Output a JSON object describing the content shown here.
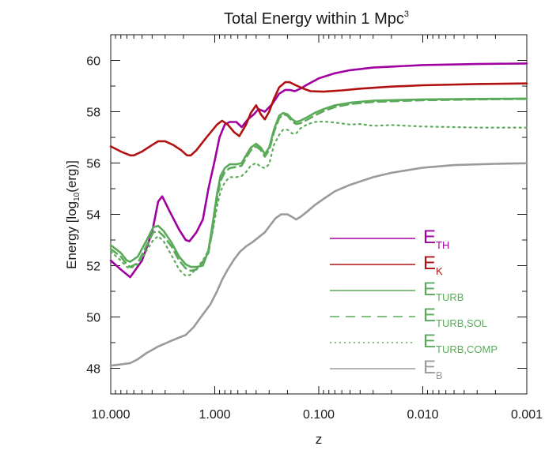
{
  "chart_data": {
    "type": "line",
    "title": "Total Energy within 1 Mpc",
    "title_superscript": "3",
    "xlabel": "z",
    "ylabel": {
      "main": "Energy [log",
      "sub": "10",
      "end": "(erg)]"
    },
    "x_scale": "log-reversed",
    "xlim": [
      10.0,
      0.001
    ],
    "ylim": [
      47,
      61
    ],
    "x_ticks": [
      {
        "value": 10.0,
        "label": "10.000"
      },
      {
        "value": 1.0,
        "label": "1.000"
      },
      {
        "value": 0.1,
        "label": "0.100"
      },
      {
        "value": 0.01,
        "label": "0.010"
      },
      {
        "value": 0.001,
        "label": "0.001"
      }
    ],
    "y_ticks": [
      {
        "value": 48,
        "label": "48"
      },
      {
        "value": 50,
        "label": "50"
      },
      {
        "value": 52,
        "label": "52"
      },
      {
        "value": 54,
        "label": "54"
      },
      {
        "value": 56,
        "label": "56"
      },
      {
        "value": 58,
        "label": "58"
      },
      {
        "value": 60,
        "label": "60"
      }
    ],
    "legend_position": "bottom-right",
    "series": [
      {
        "key": "eth",
        "name": "E",
        "sub": "TH",
        "color": "#a000a0",
        "style": "solid",
        "points": [
          [
            10,
            52.2
          ],
          [
            8,
            51.85
          ],
          [
            6.5,
            51.55
          ],
          [
            5,
            52.2
          ],
          [
            4,
            53.3
          ],
          [
            3.5,
            54.5
          ],
          [
            3.2,
            54.7
          ],
          [
            2.7,
            54.1
          ],
          [
            2.2,
            53.4
          ],
          [
            1.9,
            53.0
          ],
          [
            1.75,
            52.95
          ],
          [
            1.5,
            53.3
          ],
          [
            1.3,
            53.8
          ],
          [
            1.15,
            55.0
          ],
          [
            1.0,
            56.1
          ],
          [
            0.9,
            57.0
          ],
          [
            0.8,
            57.5
          ],
          [
            0.72,
            57.6
          ],
          [
            0.62,
            57.6
          ],
          [
            0.55,
            57.4
          ],
          [
            0.48,
            57.7
          ],
          [
            0.42,
            57.9
          ],
          [
            0.38,
            58.1
          ],
          [
            0.33,
            58.0
          ],
          [
            0.28,
            58.3
          ],
          [
            0.24,
            58.7
          ],
          [
            0.21,
            58.85
          ],
          [
            0.19,
            58.85
          ],
          [
            0.17,
            58.8
          ],
          [
            0.15,
            58.9
          ],
          [
            0.13,
            59.05
          ],
          [
            0.1,
            59.3
          ],
          [
            0.07,
            59.5
          ],
          [
            0.05,
            59.62
          ],
          [
            0.03,
            59.72
          ],
          [
            0.01,
            59.82
          ],
          [
            0.003,
            59.86
          ],
          [
            0.001,
            59.88
          ]
        ]
      },
      {
        "key": "ek",
        "name": "E",
        "sub": "K",
        "color": "#b01010",
        "style": "solid",
        "points": [
          [
            10,
            56.65
          ],
          [
            8,
            56.45
          ],
          [
            6.5,
            56.3
          ],
          [
            6,
            56.3
          ],
          [
            5,
            56.45
          ],
          [
            4,
            56.7
          ],
          [
            3.5,
            56.85
          ],
          [
            3,
            56.85
          ],
          [
            2.5,
            56.7
          ],
          [
            2.1,
            56.5
          ],
          [
            1.85,
            56.3
          ],
          [
            1.7,
            56.3
          ],
          [
            1.5,
            56.5
          ],
          [
            1.2,
            57.0
          ],
          [
            0.95,
            57.5
          ],
          [
            0.85,
            57.65
          ],
          [
            0.75,
            57.5
          ],
          [
            0.65,
            57.2
          ],
          [
            0.58,
            57.05
          ],
          [
            0.5,
            57.5
          ],
          [
            0.45,
            57.95
          ],
          [
            0.4,
            58.25
          ],
          [
            0.36,
            57.9
          ],
          [
            0.33,
            57.7
          ],
          [
            0.3,
            58.0
          ],
          [
            0.27,
            58.5
          ],
          [
            0.24,
            58.95
          ],
          [
            0.21,
            59.15
          ],
          [
            0.19,
            59.15
          ],
          [
            0.17,
            59.05
          ],
          [
            0.14,
            58.9
          ],
          [
            0.12,
            58.8
          ],
          [
            0.09,
            58.78
          ],
          [
            0.06,
            58.83
          ],
          [
            0.04,
            58.9
          ],
          [
            0.02,
            58.98
          ],
          [
            0.01,
            59.03
          ],
          [
            0.003,
            59.08
          ],
          [
            0.001,
            59.1
          ]
        ]
      },
      {
        "key": "eturb",
        "name": "E",
        "sub": "TURB",
        "color": "#5aaa5a",
        "style": "solid",
        "points": [
          [
            10,
            52.8
          ],
          [
            8,
            52.5
          ],
          [
            7,
            52.2
          ],
          [
            6.5,
            52.15
          ],
          [
            5.5,
            52.35
          ],
          [
            4.5,
            53.0
          ],
          [
            3.9,
            53.5
          ],
          [
            3.5,
            53.55
          ],
          [
            3.1,
            53.35
          ],
          [
            2.6,
            52.9
          ],
          [
            2.2,
            52.35
          ],
          [
            1.9,
            52.05
          ],
          [
            1.7,
            51.95
          ],
          [
            1.5,
            51.95
          ],
          [
            1.3,
            52.0
          ],
          [
            1.15,
            52.6
          ],
          [
            1.05,
            53.6
          ],
          [
            0.95,
            54.8
          ],
          [
            0.88,
            55.5
          ],
          [
            0.8,
            55.8
          ],
          [
            0.72,
            55.95
          ],
          [
            0.62,
            55.95
          ],
          [
            0.55,
            56.0
          ],
          [
            0.5,
            56.3
          ],
          [
            0.45,
            56.6
          ],
          [
            0.4,
            56.75
          ],
          [
            0.36,
            56.6
          ],
          [
            0.33,
            56.35
          ],
          [
            0.3,
            56.6
          ],
          [
            0.27,
            57.3
          ],
          [
            0.24,
            57.85
          ],
          [
            0.22,
            57.95
          ],
          [
            0.2,
            57.9
          ],
          [
            0.18,
            57.7
          ],
          [
            0.165,
            57.6
          ],
          [
            0.15,
            57.65
          ],
          [
            0.13,
            57.78
          ],
          [
            0.11,
            57.95
          ],
          [
            0.09,
            58.1
          ],
          [
            0.07,
            58.25
          ],
          [
            0.05,
            58.35
          ],
          [
            0.03,
            58.43
          ],
          [
            0.01,
            58.48
          ],
          [
            0.003,
            58.5
          ],
          [
            0.001,
            58.51
          ]
        ]
      },
      {
        "key": "eturb_sol",
        "name": "E",
        "sub": "TURB,SOL",
        "color": "#5aaa5a",
        "style": "dashed",
        "points": [
          [
            10,
            52.65
          ],
          [
            8,
            52.35
          ],
          [
            7,
            52.05
          ],
          [
            6.5,
            51.95
          ],
          [
            5.5,
            52.1
          ],
          [
            4.5,
            52.8
          ],
          [
            3.9,
            53.3
          ],
          [
            3.5,
            53.35
          ],
          [
            3.1,
            53.15
          ],
          [
            2.6,
            52.75
          ],
          [
            2.2,
            52.2
          ],
          [
            1.9,
            51.9
          ],
          [
            1.7,
            51.8
          ],
          [
            1.5,
            51.85
          ],
          [
            1.3,
            52.15
          ],
          [
            1.15,
            52.5
          ],
          [
            1.05,
            53.4
          ],
          [
            0.95,
            54.6
          ],
          [
            0.88,
            55.3
          ],
          [
            0.8,
            55.65
          ],
          [
            0.72,
            55.8
          ],
          [
            0.62,
            55.85
          ],
          [
            0.55,
            55.9
          ],
          [
            0.5,
            56.2
          ],
          [
            0.45,
            56.5
          ],
          [
            0.4,
            56.65
          ],
          [
            0.36,
            56.5
          ],
          [
            0.33,
            56.25
          ],
          [
            0.3,
            56.5
          ],
          [
            0.27,
            57.2
          ],
          [
            0.24,
            57.75
          ],
          [
            0.22,
            57.9
          ],
          [
            0.2,
            57.85
          ],
          [
            0.18,
            57.62
          ],
          [
            0.165,
            57.52
          ],
          [
            0.15,
            57.55
          ],
          [
            0.13,
            57.68
          ],
          [
            0.11,
            57.85
          ],
          [
            0.09,
            58.02
          ],
          [
            0.07,
            58.18
          ],
          [
            0.05,
            58.3
          ],
          [
            0.03,
            58.38
          ],
          [
            0.01,
            58.45
          ],
          [
            0.003,
            58.48
          ],
          [
            0.001,
            58.5
          ]
        ]
      },
      {
        "key": "eturb_comp",
        "name": "E",
        "sub": "TURB,COMP",
        "color": "#5aaa5a",
        "style": "dotted",
        "points": [
          [
            10,
            52.55
          ],
          [
            8,
            52.2
          ],
          [
            7,
            51.95
          ],
          [
            6.5,
            51.9
          ],
          [
            5.5,
            52.05
          ],
          [
            4.5,
            52.6
          ],
          [
            3.9,
            53.0
          ],
          [
            3.5,
            53.15
          ],
          [
            3.1,
            52.95
          ],
          [
            2.6,
            52.4
          ],
          [
            2.2,
            51.85
          ],
          [
            1.9,
            51.6
          ],
          [
            1.7,
            51.65
          ],
          [
            1.5,
            51.9
          ],
          [
            1.3,
            52.2
          ],
          [
            1.15,
            52.6
          ],
          [
            1.05,
            53.3
          ],
          [
            0.95,
            54.3
          ],
          [
            0.88,
            54.9
          ],
          [
            0.8,
            55.25
          ],
          [
            0.72,
            55.45
          ],
          [
            0.62,
            55.45
          ],
          [
            0.55,
            55.5
          ],
          [
            0.5,
            55.65
          ],
          [
            0.45,
            55.9
          ],
          [
            0.4,
            56.0
          ],
          [
            0.36,
            55.85
          ],
          [
            0.33,
            55.8
          ],
          [
            0.3,
            55.95
          ],
          [
            0.27,
            56.7
          ],
          [
            0.24,
            57.1
          ],
          [
            0.22,
            57.3
          ],
          [
            0.2,
            57.3
          ],
          [
            0.18,
            57.15
          ],
          [
            0.165,
            57.15
          ],
          [
            0.15,
            57.35
          ],
          [
            0.13,
            57.5
          ],
          [
            0.11,
            57.6
          ],
          [
            0.09,
            57.62
          ],
          [
            0.07,
            57.58
          ],
          [
            0.05,
            57.5
          ],
          [
            0.04,
            57.52
          ],
          [
            0.03,
            57.45
          ],
          [
            0.02,
            57.48
          ],
          [
            0.01,
            57.42
          ],
          [
            0.005,
            57.4
          ],
          [
            0.003,
            57.38
          ],
          [
            0.001,
            57.38
          ]
        ]
      },
      {
        "key": "eb",
        "name": "E",
        "sub": "B",
        "color": "#9a9a9a",
        "style": "solid",
        "points": [
          [
            10,
            48.1
          ],
          [
            8,
            48.15
          ],
          [
            6.5,
            48.2
          ],
          [
            5.5,
            48.35
          ],
          [
            4.5,
            48.6
          ],
          [
            3.5,
            48.85
          ],
          [
            2.7,
            49.05
          ],
          [
            2.2,
            49.2
          ],
          [
            1.9,
            49.3
          ],
          [
            1.6,
            49.6
          ],
          [
            1.3,
            50.1
          ],
          [
            1.1,
            50.5
          ],
          [
            0.95,
            51.0
          ],
          [
            0.85,
            51.45
          ],
          [
            0.75,
            51.85
          ],
          [
            0.65,
            52.25
          ],
          [
            0.57,
            52.55
          ],
          [
            0.5,
            52.75
          ],
          [
            0.44,
            52.9
          ],
          [
            0.38,
            53.1
          ],
          [
            0.33,
            53.3
          ],
          [
            0.29,
            53.6
          ],
          [
            0.26,
            53.85
          ],
          [
            0.23,
            54.0
          ],
          [
            0.2,
            54.0
          ],
          [
            0.18,
            53.9
          ],
          [
            0.165,
            53.8
          ],
          [
            0.15,
            53.9
          ],
          [
            0.13,
            54.1
          ],
          [
            0.11,
            54.35
          ],
          [
            0.09,
            54.6
          ],
          [
            0.07,
            54.9
          ],
          [
            0.05,
            55.15
          ],
          [
            0.03,
            55.45
          ],
          [
            0.02,
            55.62
          ],
          [
            0.01,
            55.82
          ],
          [
            0.005,
            55.92
          ],
          [
            0.002,
            55.97
          ],
          [
            0.001,
            55.99
          ]
        ]
      }
    ]
  }
}
